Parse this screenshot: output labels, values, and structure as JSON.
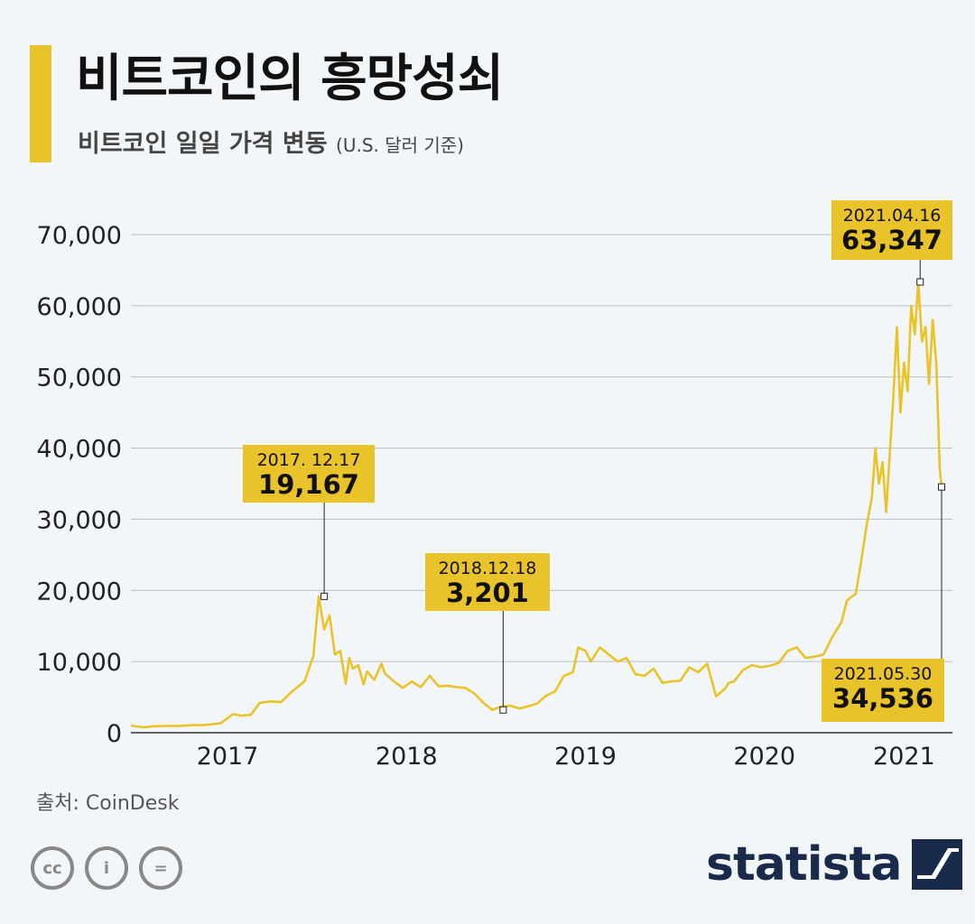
{
  "header": {
    "title": "비트코인의 흥망성쇠",
    "subtitle": "비트코인 일일 가격 변동",
    "subtitle_unit": "(U.S. 달러 기준)"
  },
  "footer": {
    "source": "출처: CoinDesk",
    "brand": "statista",
    "license_icons": [
      "cc-icon",
      "attribution-icon",
      "no-derivatives-icon"
    ],
    "license_glyphs": [
      "cc",
      "i",
      "="
    ]
  },
  "colors": {
    "accent": "#e9c32a",
    "line": "#e9c32a",
    "grid": "#b8c0c8",
    "text": "#111111",
    "brand": "#1a2a4a"
  },
  "chart_data": {
    "type": "line",
    "title": "비트코인 일일 가격 변동",
    "ylabel": "U.S. 달러",
    "xlabel": "",
    "ylim": [
      0,
      70000
    ],
    "xlim": [
      2016.88,
      2021.42
    ],
    "yticks": [
      0,
      10000,
      20000,
      30000,
      40000,
      50000,
      60000,
      70000
    ],
    "ytick_labels": [
      "0",
      "10,000",
      "20,000",
      "30,000",
      "40,000",
      "50,000",
      "60,000",
      "70,000"
    ],
    "xticks": [
      2017.42,
      2018.42,
      2019.42,
      2020.42,
      2021.2
    ],
    "xtick_labels": [
      "2017",
      "2018",
      "2019",
      "2020",
      "2021"
    ],
    "series": [
      {
        "name": "Bitcoin",
        "x": [
          2016.88,
          2016.95,
          2017.0,
          2017.08,
          2017.15,
          2017.22,
          2017.3,
          2017.38,
          2017.45,
          2017.5,
          2017.55,
          2017.6,
          2017.66,
          2017.72,
          2017.78,
          2017.85,
          2017.9,
          2017.93,
          2017.96,
          2017.99,
          2018.02,
          2018.05,
          2018.08,
          2018.1,
          2018.12,
          2018.15,
          2018.18,
          2018.2,
          2018.24,
          2018.28,
          2018.3,
          2018.35,
          2018.4,
          2018.45,
          2018.5,
          2018.55,
          2018.6,
          2018.65,
          2018.7,
          2018.75,
          2018.8,
          2018.85,
          2018.9,
          2018.93,
          2018.96,
          2019.0,
          2019.05,
          2019.1,
          2019.15,
          2019.2,
          2019.25,
          2019.3,
          2019.35,
          2019.38,
          2019.42,
          2019.45,
          2019.5,
          2019.55,
          2019.6,
          2019.65,
          2019.7,
          2019.75,
          2019.8,
          2019.85,
          2019.9,
          2019.95,
          2020.0,
          2020.05,
          2020.1,
          2020.15,
          2020.2,
          2020.22,
          2020.25,
          2020.3,
          2020.35,
          2020.4,
          2020.45,
          2020.5,
          2020.55,
          2020.6,
          2020.65,
          2020.7,
          2020.75,
          2020.8,
          2020.85,
          2020.88,
          2020.9,
          2020.93,
          2020.96,
          2020.99,
          2021.02,
          2021.04,
          2021.06,
          2021.08,
          2021.1,
          2021.12,
          2021.14,
          2021.16,
          2021.18,
          2021.2,
          2021.22,
          2021.24,
          2021.26,
          2021.28,
          2021.3,
          2021.32,
          2021.34,
          2021.36,
          2021.38,
          2021.4,
          2021.41
        ],
        "values": [
          1000,
          750,
          900,
          950,
          950,
          1050,
          1100,
          1300,
          2600,
          2400,
          2500,
          4200,
          4400,
          4300,
          5800,
          7200,
          10800,
          19167,
          14500,
          16500,
          11000,
          11500,
          6900,
          10500,
          9000,
          9500,
          6800,
          8600,
          7400,
          9700,
          8300,
          7200,
          6300,
          7200,
          6400,
          8000,
          6500,
          6600,
          6400,
          6300,
          5500,
          4200,
          3201,
          3500,
          3700,
          3800,
          3400,
          3700,
          4100,
          5200,
          5800,
          8000,
          8500,
          12000,
          11500,
          10000,
          12000,
          11000,
          10000,
          10500,
          8200,
          8000,
          9000,
          7000,
          7200,
          7300,
          9200,
          8500,
          9700,
          5100,
          6200,
          7000,
          7200,
          8800,
          9500,
          9200,
          9400,
          9800,
          11500,
          12000,
          10500,
          10700,
          11000,
          13500,
          15500,
          18500,
          19000,
          19500,
          24000,
          29000,
          33000,
          40000,
          35000,
          38000,
          31000,
          39000,
          47000,
          57000,
          45000,
          52000,
          48000,
          60000,
          56000,
          63347,
          55000,
          57000,
          49000,
          58000,
          52000,
          37000,
          34536
        ]
      }
    ],
    "annotations": [
      {
        "date": "2017. 12.17",
        "value": 19167,
        "value_label": "19,167",
        "x": 2017.96
      },
      {
        "date": "2018.12.18",
        "value": 3201,
        "value_label": "3,201",
        "x": 2018.96
      },
      {
        "date": "2021.04.16",
        "value": 63347,
        "value_label": "63,347",
        "x": 2021.29
      },
      {
        "date": "2021.05.30",
        "value": 34536,
        "value_label": "34,536",
        "x": 2021.41
      }
    ]
  }
}
